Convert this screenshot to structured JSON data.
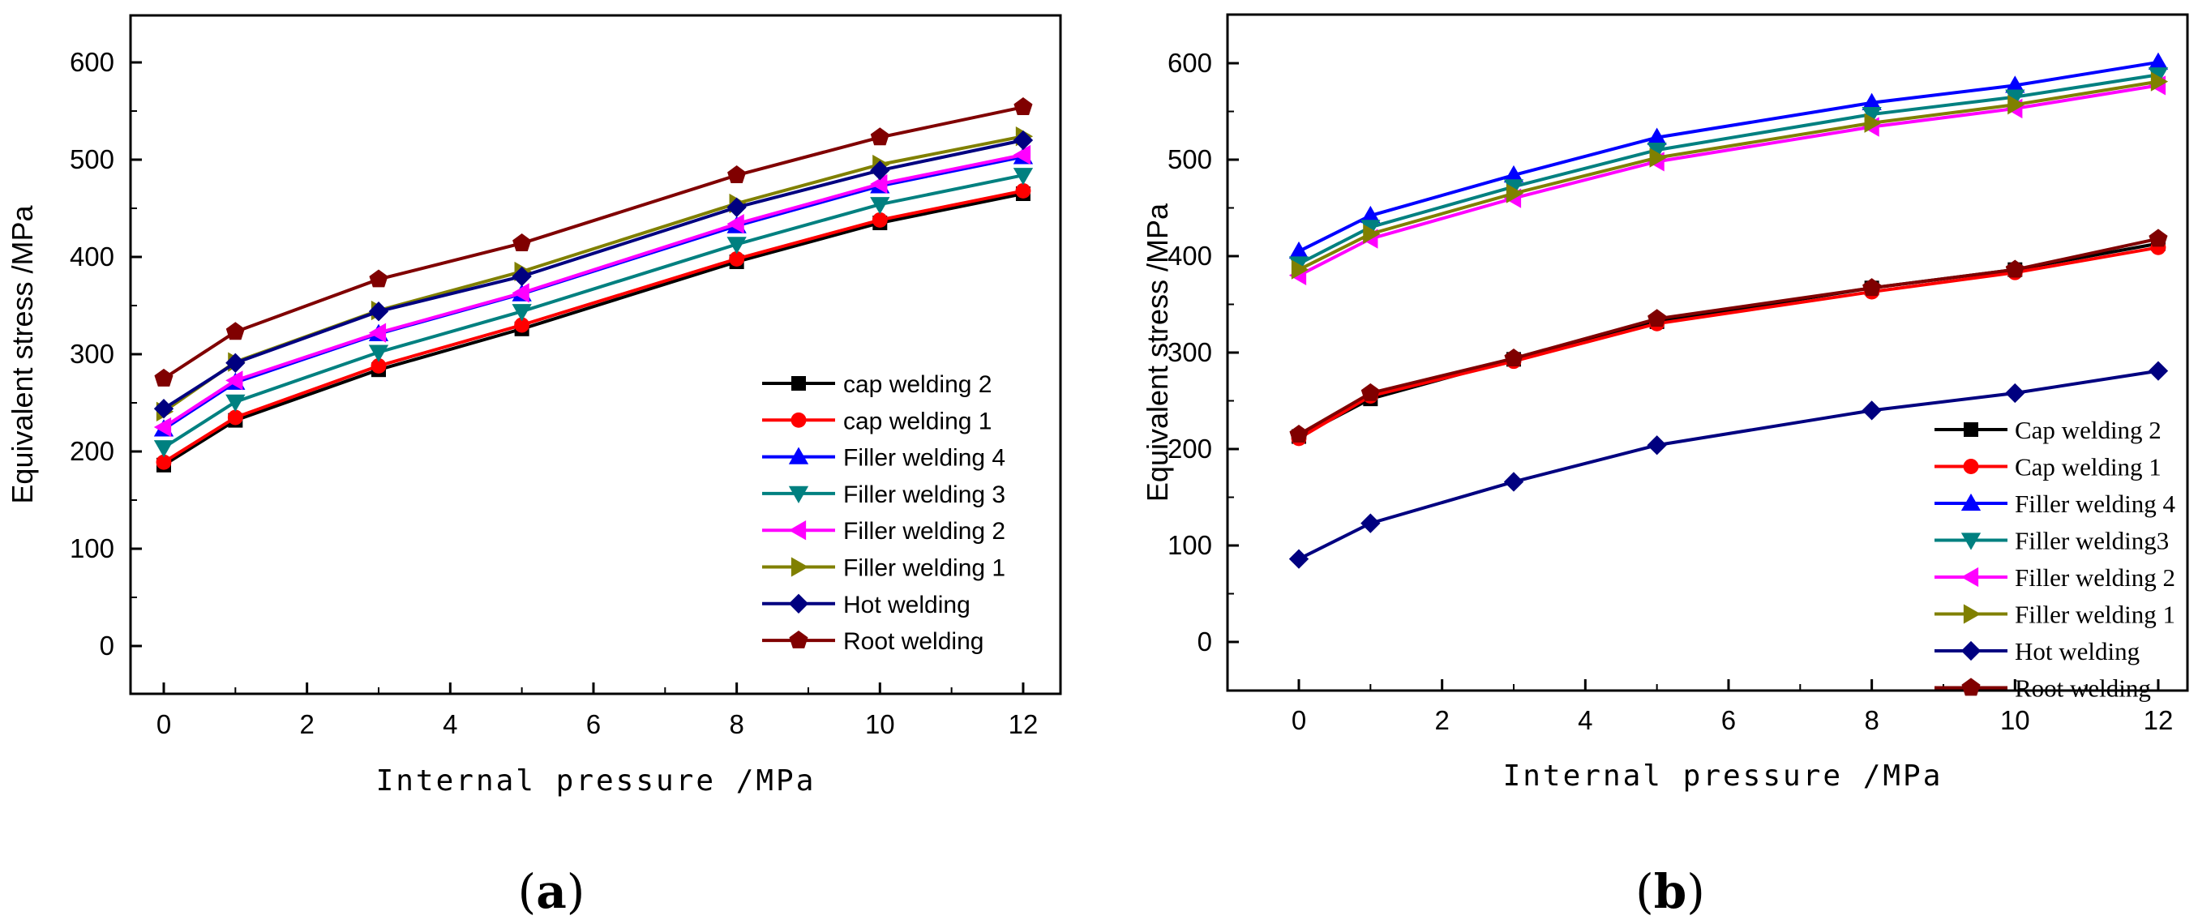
{
  "colors": {
    "cap2": "#000000",
    "cap1": "#ff0000",
    "f4": "#0000ff",
    "f3": "#008080",
    "f2": "#ff00ff",
    "f1": "#808000",
    "hot": "#000080",
    "root": "#800000"
  },
  "chart_data": [
    {
      "panel": "a",
      "caption_letter": "a",
      "type": "line",
      "xlabel": "Internal pressure /MPa",
      "ylabel": "Equivalent stress /MPa",
      "xlim": [
        -0.5,
        12.5
      ],
      "ylim": [
        -50,
        650
      ],
      "xticks": [
        0,
        2,
        4,
        6,
        8,
        10,
        12
      ],
      "yticks": [
        0,
        100,
        200,
        300,
        400,
        500,
        600
      ],
      "grid": false,
      "legend_position": "bottom-right",
      "x": [
        0,
        1,
        3,
        5,
        8,
        10,
        12
      ],
      "series": [
        {
          "name": "cap welding 2",
          "marker": "square",
          "color": "#000000",
          "values": [
            186,
            232,
            284,
            326,
            395,
            435,
            465
          ]
        },
        {
          "name": "cap welding 1",
          "marker": "circle",
          "color": "#ff0000",
          "values": [
            189,
            235,
            288,
            330,
            398,
            438,
            468
          ]
        },
        {
          "name": "Filler welding 4",
          "marker": "triangle-up",
          "color": "#0000ff",
          "values": [
            223,
            271,
            321,
            362,
            432,
            473,
            503
          ]
        },
        {
          "name": "Filler welding 3",
          "marker": "triangle-down",
          "color": "#008080",
          "values": [
            204,
            251,
            302,
            344,
            413,
            454,
            484
          ]
        },
        {
          "name": "Filler welding 2",
          "marker": "triangle-left",
          "color": "#ff00ff",
          "values": [
            225,
            273,
            322,
            363,
            434,
            475,
            505
          ]
        },
        {
          "name": "Filler welding 1",
          "marker": "triangle-right",
          "color": "#808000",
          "values": [
            241,
            292,
            345,
            385,
            455,
            495,
            524
          ]
        },
        {
          "name": "Hot welding",
          "marker": "diamond",
          "color": "#000080",
          "values": [
            244,
            291,
            344,
            380,
            451,
            489,
            520
          ]
        },
        {
          "name": "Root welding",
          "marker": "pentagon",
          "color": "#800000",
          "values": [
            275,
            323,
            377,
            414,
            484,
            523,
            554
          ]
        }
      ]
    },
    {
      "panel": "b",
      "caption_letter": "b",
      "type": "line",
      "xlabel": "Internal pressure /MPa",
      "ylabel": "Equivalent stress /MPa",
      "xlim": [
        -0.5,
        12.5
      ],
      "ylim": [
        -50,
        650
      ],
      "xticks": [
        0,
        2,
        4,
        6,
        8,
        10,
        12
      ],
      "yticks": [
        0,
        100,
        200,
        300,
        400,
        500,
        600
      ],
      "grid": false,
      "legend_position": "bottom-right",
      "x": [
        0,
        1,
        3,
        5,
        8,
        10,
        12
      ],
      "series": [
        {
          "name": "Cap welding 2",
          "marker": "square",
          "color": "#000000",
          "values": [
            213,
            252,
            293,
            332,
            367,
            386,
            413
          ]
        },
        {
          "name": "Cap welding 1",
          "marker": "circle",
          "color": "#ff0000",
          "values": [
            211,
            255,
            291,
            330,
            363,
            383,
            409
          ]
        },
        {
          "name": "Filler welding 4",
          "marker": "triangle-up",
          "color": "#0000ff",
          "values": [
            405,
            442,
            484,
            523,
            559,
            577,
            601
          ]
        },
        {
          "name": "Filler welding3",
          "marker": "triangle-down",
          "color": "#008080",
          "values": [
            392,
            430,
            472,
            510,
            547,
            565,
            588
          ]
        },
        {
          "name": "Filler welding 2",
          "marker": "triangle-left",
          "color": "#ff00ff",
          "values": [
            380,
            418,
            460,
            498,
            534,
            553,
            577
          ]
        },
        {
          "name": "Filler welding 1",
          "marker": "triangle-right",
          "color": "#808000",
          "values": [
            386,
            423,
            465,
            502,
            538,
            557,
            581
          ]
        },
        {
          "name": "Hot welding",
          "marker": "diamond",
          "color": "#000080",
          "values": [
            86,
            123,
            166,
            204,
            240,
            258,
            281
          ]
        },
        {
          "name": "Root welding",
          "marker": "pentagon",
          "color": "#800000",
          "values": [
            215,
            258,
            294,
            335,
            367,
            386,
            418
          ]
        }
      ]
    }
  ]
}
